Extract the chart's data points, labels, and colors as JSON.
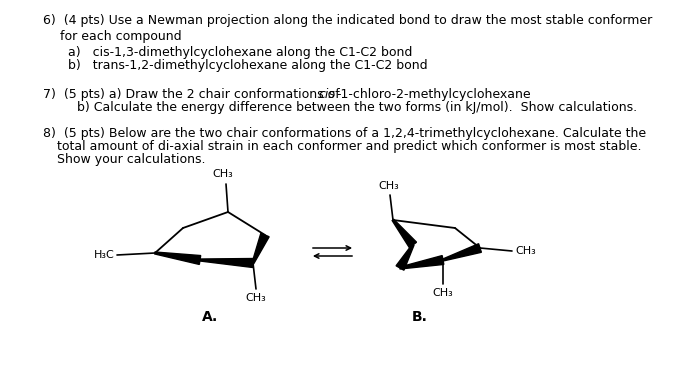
{
  "bg_color": "#ffffff",
  "fig_width": 7.0,
  "fig_height": 3.7,
  "fontsize_main": 9.0,
  "line6_1": "6)  (4 pts) Use a Newman projection along the indicated bond to draw the most stable conformer",
  "line6_2": "for each compound",
  "line6_3a": "a)   cis-1,3-dimethylcyclohexane along the C1-C2 bond",
  "line6_3b": "b)   trans-1,2-dimethylcyclohexane along the C1-C2 bond",
  "line7_1a": "7)  (5 pts) a) Draw the 2 chair conformations of ",
  "line7_1a_italic": "cis",
  "line7_1b": "-1-chloro-2-methylcyclohexane",
  "line7_2": "     b) Calculate the energy difference between the two forms (in kJ/mol).  Show calculations.",
  "line8_1": "8)  (5 pts) Below are the two chair conformations of a 1,2,4-trimethylcyclohexane. Calculate the",
  "line8_2": "total amount of di-axial strain in each conformer and predict which conformer is most stable.",
  "line8_3": "Show your calculations.",
  "label_A": "A.",
  "label_B": "B.",
  "label_CH3": "CH₃",
  "label_H3C": "H₃C"
}
